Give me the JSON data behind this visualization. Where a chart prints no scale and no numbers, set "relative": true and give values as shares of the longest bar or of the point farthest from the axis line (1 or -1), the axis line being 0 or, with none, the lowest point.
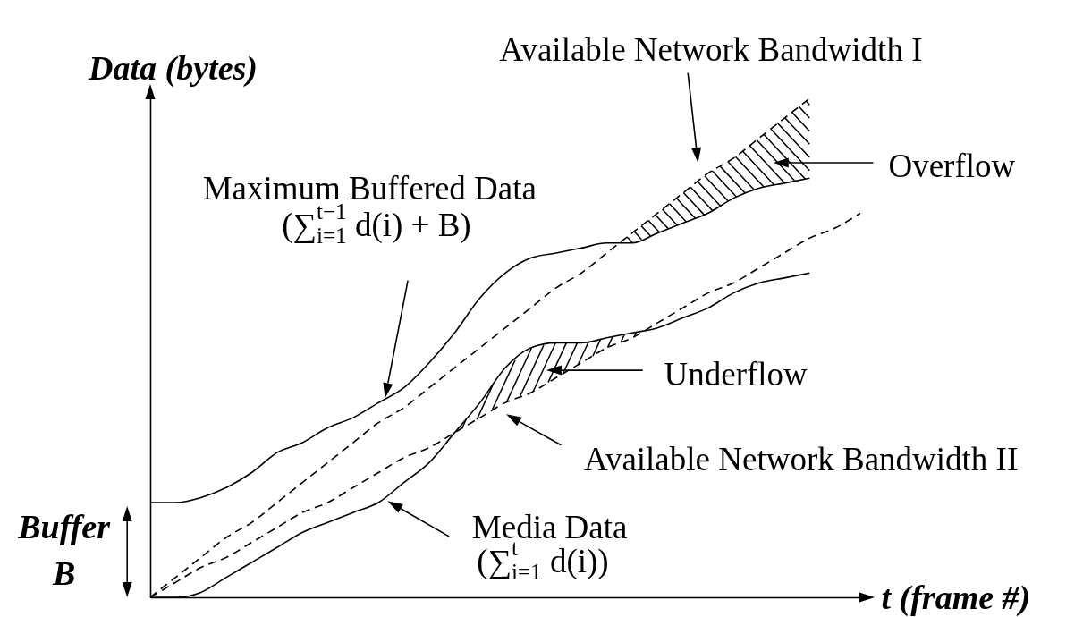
{
  "chart_data": {
    "type": "line",
    "relative": true,
    "xlabel": "t (frame #)",
    "ylabel": "Data (bytes)",
    "categories": [
      null,
      null,
      null,
      null,
      null,
      null,
      null,
      null,
      null,
      null,
      null,
      null,
      null,
      null,
      null,
      null,
      null,
      null,
      null,
      null,
      null,
      null,
      null,
      null,
      null,
      null,
      null,
      null,
      null
    ],
    "series": [
      {
        "name": "Maximum Buffered Data",
        "color": "#000000",
        "line_style": "solid",
        "values": [
          0.19,
          0.19,
          0.2,
          0.22,
          0.25,
          0.29,
          0.31,
          0.34,
          0.36,
          0.39,
          0.42,
          0.47,
          0.53,
          0.6,
          0.65,
          0.68,
          0.69,
          0.7,
          0.71,
          0.71,
          0.73,
          0.75,
          0.77,
          0.8,
          0.82,
          0.83,
          0.84,
          null,
          null
        ]
      },
      {
        "name": "Media Data",
        "color": "#000000",
        "line_style": "solid",
        "values": [
          0,
          0,
          0.01,
          0.04,
          0.07,
          0.1,
          0.13,
          0.15,
          0.17,
          0.19,
          0.23,
          0.27,
          0.33,
          0.39,
          0.46,
          0.5,
          0.51,
          0.51,
          0.52,
          0.53,
          0.54,
          0.56,
          0.58,
          0.61,
          0.63,
          0.64,
          0.65,
          null,
          null
        ]
      },
      {
        "name": "Available Network Bandwidth I",
        "color": "#000000",
        "line_style": "dashed",
        "values": [
          0,
          0.04,
          0.08,
          0.12,
          0.15,
          0.19,
          0.23,
          0.27,
          0.31,
          0.35,
          0.38,
          0.42,
          0.46,
          0.5,
          0.54,
          0.58,
          0.62,
          0.65,
          0.69,
          0.73,
          0.77,
          0.81,
          0.85,
          0.88,
          0.92,
          0.96,
          1,
          null,
          null
        ]
      },
      {
        "name": "Available Network Bandwidth II",
        "color": "#000000",
        "line_style": "dashed",
        "values": [
          0,
          0.03,
          0.06,
          0.08,
          0.11,
          0.14,
          0.17,
          0.19,
          0.22,
          0.25,
          0.28,
          0.3,
          0.33,
          0.36,
          0.39,
          0.41,
          0.44,
          0.47,
          0.5,
          0.52,
          0.55,
          0.58,
          0.61,
          0.63,
          0.66,
          0.69,
          0.72,
          0.74,
          0.77
        ]
      }
    ],
    "annotations": [
      "(∑$_{i=1}$$^{t−1}$ d(i) + B)",
      "(∑$_{i=1}$$^{t}$ d(i))",
      "Overflow",
      "Underflow",
      "Buffer B"
    ]
  }
}
